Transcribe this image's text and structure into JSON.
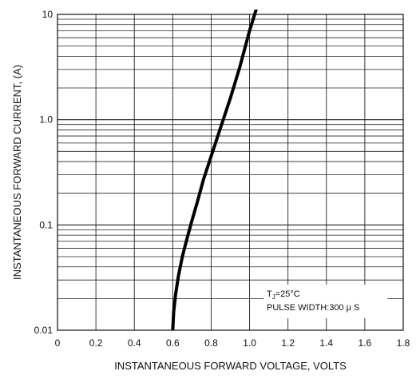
{
  "chart_data": {
    "type": "line",
    "xlabel": "INSTANTANEOUS FORWARD VOLTAGE, VOLTS",
    "ylabel": "INSTANTANEOUS FORWARD CURRENT, (A)",
    "x_ticks": [
      "0",
      "0.2",
      "0.4",
      "0.6",
      "0.8",
      "1.0",
      "1.2",
      "1.4",
      "1.6",
      "1.8"
    ],
    "y_ticks": [
      "0.01",
      "0.1",
      "1.0",
      "10"
    ],
    "xlim": [
      0,
      1.8
    ],
    "ylim": [
      0.01,
      10
    ],
    "y_scale": "log",
    "grid": true,
    "series": [
      {
        "x": [
          0.6,
          0.605,
          0.615,
          0.63,
          0.65,
          0.675,
          0.7,
          0.73,
          0.76,
          0.8,
          0.85,
          0.9,
          0.95,
          1.0,
          1.04
        ],
        "y": [
          0.01,
          0.015,
          0.022,
          0.033,
          0.05,
          0.075,
          0.11,
          0.17,
          0.27,
          0.45,
          0.85,
          1.6,
          3.2,
          7.0,
          12.0
        ]
      }
    ],
    "annotation": {
      "line1_main": "T",
      "line1_sub": "J",
      "line1_rest": "=25",
      "line1_unit": "°C",
      "line2": "PULSE WIDTH:300 μ S"
    }
  }
}
